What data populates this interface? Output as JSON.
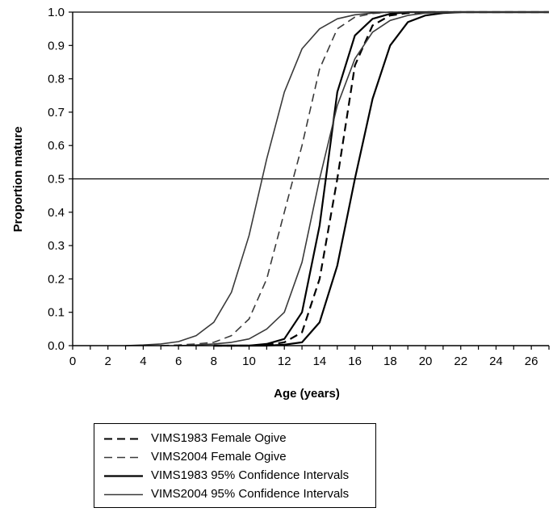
{
  "chart_data": {
    "type": "line",
    "title": "",
    "xlabel": "Age (years)",
    "ylabel": "Proportion mature",
    "xlim": [
      0,
      27
    ],
    "ylim": [
      0,
      1.0
    ],
    "x_ticks": [
      "0",
      "2",
      "4",
      "6",
      "8",
      "10",
      "12",
      "14",
      "16",
      "18",
      "20",
      "22",
      "24",
      "26"
    ],
    "y_ticks": [
      "0.0",
      "0.1",
      "0.2",
      "0.3",
      "0.4",
      "0.5",
      "0.6",
      "0.7",
      "0.8",
      "0.9",
      "1.0"
    ],
    "x_tick_values": [
      0,
      2,
      4,
      6,
      8,
      10,
      12,
      14,
      16,
      18,
      20,
      22,
      24,
      26
    ],
    "y_tick_values": [
      0,
      0.1,
      0.2,
      0.3,
      0.4,
      0.5,
      0.6,
      0.7,
      0.8,
      0.9,
      1.0
    ],
    "reference_line_y": 0.5,
    "legend_position": "below",
    "series": [
      {
        "name": "VIMS1983 Female Ogive",
        "style": "dashed",
        "color": "#000000",
        "x": [
          8,
          9,
          10,
          11,
          12,
          13,
          14,
          15,
          16,
          17,
          18,
          19,
          20,
          21,
          22,
          27
        ],
        "y": [
          0,
          0,
          0,
          0.002,
          0.01,
          0.04,
          0.2,
          0.5,
          0.84,
          0.96,
          0.99,
          0.997,
          1,
          1,
          1,
          1
        ]
      },
      {
        "name": "VIMS2004 Female Ogive",
        "style": "dashed",
        "color": "#3a3a3a",
        "x": [
          5,
          6,
          7,
          8,
          9,
          10,
          11,
          12,
          12.5,
          13,
          14,
          15,
          16,
          17,
          18,
          19,
          20,
          22,
          27
        ],
        "y": [
          0,
          0.002,
          0.005,
          0.01,
          0.03,
          0.08,
          0.2,
          0.4,
          0.5,
          0.6,
          0.83,
          0.95,
          0.985,
          0.996,
          1,
          1,
          1,
          1,
          1
        ]
      },
      {
        "name": "VIMS1983 95% Confidence Intervals",
        "style": "solid",
        "color": "#000000",
        "x": [
          8,
          9,
          10,
          11,
          12,
          13,
          14,
          15,
          16,
          17,
          18,
          19,
          20,
          21,
          22,
          27
        ],
        "y": [
          0,
          0,
          0,
          0.005,
          0.02,
          0.1,
          0.36,
          0.76,
          0.93,
          0.98,
          0.995,
          1,
          1,
          1,
          1,
          1
        ]
      },
      {
        "name": "VIMS1983 95% Confidence Intervals (upper age bound)",
        "style": "solid",
        "color": "#000000",
        "x": [
          8,
          9,
          10,
          11,
          12,
          13,
          14,
          15,
          16,
          17,
          18,
          19,
          20,
          21,
          22,
          27
        ],
        "y": [
          0,
          0,
          0,
          0,
          0.003,
          0.01,
          0.07,
          0.24,
          0.5,
          0.74,
          0.9,
          0.97,
          0.99,
          0.997,
          1,
          1
        ]
      },
      {
        "name": "VIMS2004 95% Confidence Intervals",
        "style": "solid",
        "color": "#3a3a3a",
        "x": [
          3,
          4,
          5,
          6,
          7,
          8,
          9,
          10,
          11,
          12,
          13,
          14,
          15,
          16,
          17,
          18,
          20,
          22,
          27
        ],
        "y": [
          0,
          0.002,
          0.005,
          0.012,
          0.03,
          0.07,
          0.16,
          0.33,
          0.56,
          0.76,
          0.89,
          0.95,
          0.98,
          0.992,
          0.997,
          1,
          1,
          1,
          1
        ]
      },
      {
        "name": "VIMS2004 95% Confidence Intervals (upper age bound)",
        "style": "solid",
        "color": "#3a3a3a",
        "x": [
          6,
          7,
          8,
          9,
          10,
          11,
          12,
          13,
          14,
          15,
          16,
          17,
          18,
          19,
          20,
          22,
          27
        ],
        "y": [
          0,
          0.002,
          0.005,
          0.01,
          0.02,
          0.05,
          0.1,
          0.25,
          0.5,
          0.72,
          0.86,
          0.94,
          0.975,
          0.99,
          0.997,
          1,
          1
        ]
      }
    ]
  },
  "legend": {
    "items": [
      {
        "label": "VIMS1983 Female Ogive",
        "style": "dashed",
        "color": "#000000"
      },
      {
        "label": "VIMS2004 Female Ogive",
        "style": "dashed",
        "color": "#3a3a3a"
      },
      {
        "label": "VIMS1983 95% Confidence Intervals",
        "style": "solid",
        "color": "#000000"
      },
      {
        "label": "VIMS2004 95% Confidence Intervals",
        "style": "solid",
        "color": "#3a3a3a"
      }
    ]
  }
}
